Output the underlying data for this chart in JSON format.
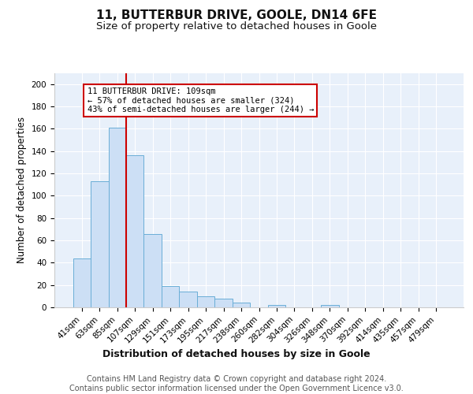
{
  "title1": "11, BUTTERBUR DRIVE, GOOLE, DN14 6FE",
  "title2": "Size of property relative to detached houses in Goole",
  "xlabel": "Distribution of detached houses by size in Goole",
  "ylabel": "Number of detached properties",
  "categories": [
    "41sqm",
    "63sqm",
    "85sqm",
    "107sqm",
    "129sqm",
    "151sqm",
    "173sqm",
    "195sqm",
    "217sqm",
    "238sqm",
    "260sqm",
    "282sqm",
    "304sqm",
    "326sqm",
    "348sqm",
    "370sqm",
    "392sqm",
    "414sqm",
    "435sqm",
    "457sqm",
    "479sqm"
  ],
  "values": [
    44,
    113,
    161,
    136,
    66,
    19,
    14,
    10,
    8,
    4,
    0,
    2,
    0,
    0,
    2,
    0,
    0,
    0,
    0,
    0,
    0
  ],
  "bar_color": "#ccdff5",
  "bar_edge_color": "#6aaed6",
  "vline_x_index": 3,
  "vline_color": "#cc0000",
  "annotation_text": "11 BUTTERBUR DRIVE: 109sqm\n← 57% of detached houses are smaller (324)\n43% of semi-detached houses are larger (244) →",
  "annotation_box_color": "#ffffff",
  "annotation_box_edge": "#cc0000",
  "ylim": [
    0,
    210
  ],
  "yticks": [
    0,
    20,
    40,
    60,
    80,
    100,
    120,
    140,
    160,
    180,
    200
  ],
  "footnote": "Contains HM Land Registry data © Crown copyright and database right 2024.\nContains public sector information licensed under the Open Government Licence v3.0.",
  "bg_color": "#e8f0fa",
  "title1_fontsize": 11,
  "title2_fontsize": 9.5,
  "xlabel_fontsize": 9,
  "ylabel_fontsize": 8.5,
  "tick_fontsize": 7.5,
  "annotation_fontsize": 7.5,
  "footnote_fontsize": 7
}
